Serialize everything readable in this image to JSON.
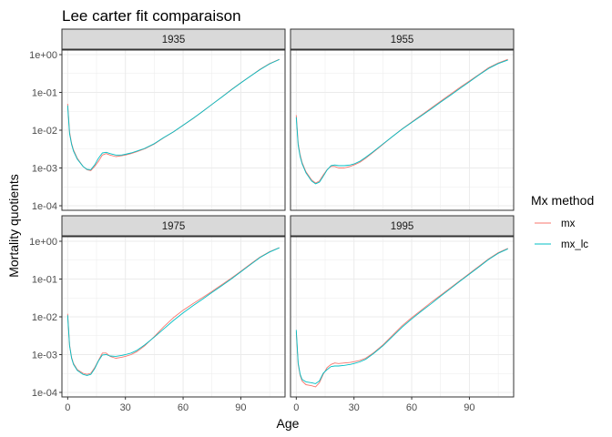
{
  "chart_data": {
    "type": "line",
    "title": "Lee carter fit comparaison",
    "xlabel": "Age",
    "ylabel": "Mortality quotients",
    "y_scale": "log10",
    "xlim": [
      -3,
      113
    ],
    "ylim": [
      0.0001,
      1
    ],
    "x_ticks": [
      0,
      30,
      60,
      90
    ],
    "x_tick_labels": [
      "0",
      "30",
      "60",
      "90"
    ],
    "y_ticks": [
      0.0001,
      0.001,
      0.01,
      0.1,
      1
    ],
    "y_tick_labels": [
      "1e-04",
      "1e-03",
      "1e-02",
      "1e-01",
      "1e+00"
    ],
    "grid": true,
    "legend": {
      "title": "Mx method",
      "position": "right",
      "entries": [
        {
          "name": "mx",
          "color": "#F8766D"
        },
        {
          "name": "mx_lc",
          "color": "#00BFC4"
        }
      ]
    },
    "colors": {
      "mx": "#F8766D",
      "mx_lc": "#00BFC4",
      "strip_fill": "#d9d9d9",
      "grid": "#ebebeb",
      "panel_border": "#333333"
    },
    "panels": [
      {
        "label": "1935",
        "x": [
          0,
          1,
          2,
          3,
          5,
          8,
          10,
          12,
          14,
          16,
          18,
          20,
          22,
          25,
          28,
          30,
          33,
          36,
          40,
          45,
          50,
          55,
          60,
          65,
          70,
          75,
          80,
          85,
          90,
          95,
          100,
          105,
          110
        ],
        "series": [
          {
            "name": "mx",
            "values": [
              0.05,
              0.009,
              0.0045,
              0.003,
              0.0018,
              0.0011,
              0.0009,
              0.00085,
              0.0011,
              0.0015,
              0.0022,
              0.0024,
              0.0022,
              0.002,
              0.0021,
              0.0022,
              0.0024,
              0.0027,
              0.0032,
              0.0043,
              0.0063,
              0.009,
              0.0135,
              0.02,
              0.031,
              0.048,
              0.075,
              0.118,
              0.18,
              0.27,
              0.41,
              0.58,
              0.75
            ]
          },
          {
            "name": "mx_lc",
            "values": [
              0.045,
              0.008,
              0.0042,
              0.0028,
              0.0017,
              0.0011,
              0.00092,
              0.0009,
              0.0012,
              0.0018,
              0.0025,
              0.0026,
              0.0024,
              0.0022,
              0.0022,
              0.0023,
              0.0025,
              0.0028,
              0.0033,
              0.0044,
              0.0064,
              0.0091,
              0.0136,
              0.0202,
              0.031,
              0.048,
              0.074,
              0.116,
              0.178,
              0.27,
              0.4,
              0.57,
              0.74
            ]
          }
        ]
      },
      {
        "label": "1955",
        "x": [
          0,
          1,
          2,
          3,
          5,
          8,
          10,
          12,
          14,
          16,
          18,
          20,
          22,
          25,
          28,
          30,
          33,
          36,
          40,
          45,
          50,
          55,
          60,
          65,
          70,
          75,
          80,
          85,
          90,
          95,
          100,
          105,
          110
        ],
        "series": [
          {
            "name": "mx",
            "values": [
              0.025,
              0.0045,
              0.0022,
              0.0014,
              0.0008,
              0.00048,
              0.0004,
              0.00045,
              0.00065,
              0.0009,
              0.0011,
              0.0011,
              0.001,
              0.001,
              0.0011,
              0.0012,
              0.0014,
              0.0018,
              0.0026,
              0.0042,
              0.0068,
              0.0108,
              0.0165,
              0.025,
              0.038,
              0.058,
              0.088,
              0.135,
              0.2,
              0.3,
              0.45,
              0.6,
              0.75
            ]
          },
          {
            "name": "mx_lc",
            "values": [
              0.022,
              0.004,
              0.002,
              0.0013,
              0.00075,
              0.00045,
              0.00038,
              0.00042,
              0.0006,
              0.00088,
              0.00115,
              0.0012,
              0.00115,
              0.00115,
              0.0012,
              0.00128,
              0.0015,
              0.0019,
              0.0027,
              0.0043,
              0.0068,
              0.0106,
              0.016,
              0.024,
              0.036,
              0.055,
              0.083,
              0.127,
              0.19,
              0.29,
              0.43,
              0.58,
              0.72
            ]
          }
        ]
      },
      {
        "label": "1975",
        "x": [
          0,
          1,
          2,
          3,
          5,
          8,
          10,
          12,
          14,
          16,
          18,
          20,
          22,
          25,
          28,
          30,
          33,
          36,
          40,
          45,
          50,
          55,
          60,
          65,
          70,
          75,
          80,
          85,
          90,
          95,
          100,
          105,
          110
        ],
        "series": [
          {
            "name": "mx",
            "values": [
              0.012,
              0.0018,
              0.00085,
              0.00058,
              0.0004,
              0.00032,
              0.0003,
              0.00032,
              0.00045,
              0.0007,
              0.0011,
              0.0011,
              0.0009,
              0.0008,
              0.00085,
              0.0009,
              0.001,
              0.0012,
              0.0017,
              0.003,
              0.0055,
              0.0095,
              0.015,
              0.022,
              0.032,
              0.047,
              0.07,
              0.105,
              0.16,
              0.25,
              0.38,
              0.53,
              0.68
            ]
          },
          {
            "name": "mx_lc",
            "values": [
              0.011,
              0.0017,
              0.0008,
              0.00055,
              0.00038,
              0.0003,
              0.00028,
              0.0003,
              0.00042,
              0.00068,
              0.00098,
              0.001,
              0.00092,
              0.0009,
              0.00095,
              0.001,
              0.0011,
              0.0013,
              0.0018,
              0.0029,
              0.0048,
              0.008,
              0.0128,
              0.0195,
              0.029,
              0.044,
              0.066,
              0.1,
              0.155,
              0.24,
              0.37,
              0.52,
              0.67
            ]
          }
        ]
      },
      {
        "label": "1995",
        "x": [
          0,
          1,
          2,
          3,
          5,
          8,
          10,
          12,
          14,
          16,
          18,
          20,
          22,
          25,
          28,
          30,
          33,
          36,
          40,
          45,
          50,
          55,
          60,
          65,
          70,
          75,
          80,
          85,
          90,
          95,
          100,
          105,
          110
        ],
        "series": [
          {
            "name": "mx",
            "values": [
              0.004,
              0.00055,
              0.00028,
              0.0002,
              0.00016,
              0.00015,
              0.00014,
              0.00018,
              0.0003,
              0.00045,
              0.00055,
              0.0006,
              0.00058,
              0.0006,
              0.00062,
              0.00065,
              0.0007,
              0.0008,
              0.0011,
              0.0018,
              0.0032,
              0.0058,
              0.0095,
              0.015,
              0.024,
              0.037,
              0.058,
              0.09,
              0.14,
              0.22,
              0.34,
              0.5,
              0.65
            ]
          },
          {
            "name": "mx_lc",
            "values": [
              0.0045,
              0.0006,
              0.0003,
              0.00022,
              0.00019,
              0.00018,
              0.00017,
              0.0002,
              0.00032,
              0.0004,
              0.00048,
              0.0005,
              0.0005,
              0.00052,
              0.00055,
              0.00058,
              0.00064,
              0.00075,
              0.00105,
              0.0017,
              0.003,
              0.0053,
              0.0088,
              0.014,
              0.022,
              0.035,
              0.055,
              0.087,
              0.135,
              0.21,
              0.33,
              0.48,
              0.63
            ]
          }
        ]
      }
    ]
  }
}
